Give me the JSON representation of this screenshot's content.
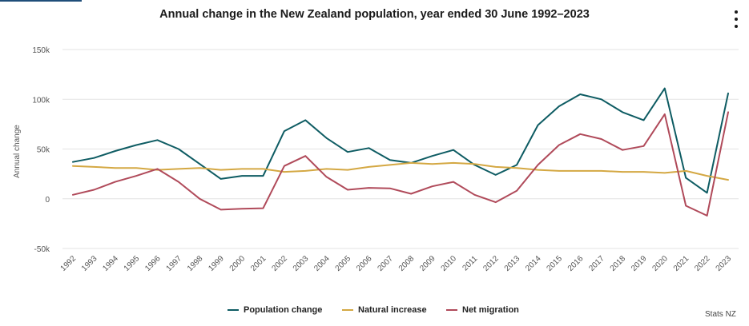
{
  "title": "Annual change in the New Zealand population, year ended 30 June 1992–2023",
  "credit": "Stats NZ",
  "legend": [
    {
      "label": "Population change",
      "color": "#0e5c63"
    },
    {
      "label": "Natural increase",
      "color": "#d4a843"
    },
    {
      "label": "Net migration",
      "color": "#b04a5a"
    }
  ],
  "chart_data": {
    "type": "line",
    "title": "Annual change in the New Zealand population, year ended 30 June 1992–2023",
    "xlabel": "",
    "ylabel": "Annual change",
    "ylim": [
      -50000,
      150000
    ],
    "yticks": [
      150000,
      100000,
      50000,
      0,
      -50000
    ],
    "ytick_labels": [
      "150k",
      "100k",
      "50k",
      "0",
      "-50k"
    ],
    "grid": "horizontal",
    "legend_position": "bottom",
    "categories": [
      "1992",
      "1993",
      "1994",
      "1995",
      "1996",
      "1997",
      "1998",
      "1999",
      "2000",
      "2001",
      "2002",
      "2003",
      "2004",
      "2005",
      "2006",
      "2007",
      "2008",
      "2009",
      "2010",
      "2011",
      "2012",
      "2013",
      "2014",
      "2015",
      "2016",
      "2017",
      "2018",
      "2019",
      "2020",
      "2021",
      "2022",
      "2023"
    ],
    "series": [
      {
        "name": "Population change",
        "color": "#0e5c63",
        "values": [
          37000,
          41000,
          48000,
          54000,
          59000,
          50000,
          35000,
          20000,
          23000,
          23000,
          68000,
          79000,
          61000,
          47000,
          51000,
          39000,
          36000,
          43000,
          49000,
          34000,
          24000,
          34000,
          74000,
          93000,
          105000,
          100000,
          87000,
          79000,
          111000,
          21000,
          6000,
          106000
        ]
      },
      {
        "name": "Natural increase",
        "color": "#d4a843",
        "values": [
          33000,
          32000,
          31000,
          31000,
          29000,
          30000,
          31000,
          29000,
          30000,
          30000,
          27000,
          28000,
          30000,
          29000,
          32000,
          34000,
          36000,
          35000,
          36000,
          35000,
          32000,
          31000,
          29000,
          28000,
          28000,
          28000,
          27000,
          27000,
          26000,
          28000,
          23000,
          19000
        ]
      },
      {
        "name": "Net migration",
        "color": "#b04a5a",
        "values": [
          4000,
          9000,
          17000,
          23000,
          30000,
          17000,
          0,
          -11000,
          -10000,
          -9500,
          33000,
          43000,
          22000,
          9000,
          11000,
          10500,
          5000,
          12500,
          17000,
          4000,
          -3500,
          8000,
          34000,
          54000,
          65000,
          60000,
          49000,
          53000,
          85000,
          -7000,
          -17000,
          87000
        ]
      }
    ]
  }
}
